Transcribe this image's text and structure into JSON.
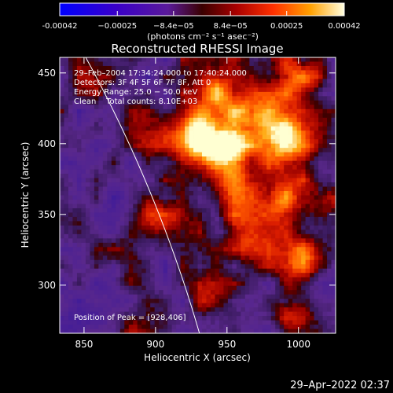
{
  "chart_data": {
    "type": "heatmap",
    "title": "Reconstructed RHESSI Image",
    "xlabel": "Heliocentric X (arcsec)",
    "ylabel": "Heliocentric Y (arcsec)",
    "xlim": [
      833,
      1026
    ],
    "ylim": [
      266,
      461
    ],
    "xticks": [
      850,
      900,
      950,
      1000
    ],
    "yticks": [
      300,
      350,
      400,
      450
    ],
    "colorbar": {
      "unit_label": "(photons cm⁻² s⁻¹ asec⁻²)",
      "ticks": [
        {
          "value": -0.00042,
          "label": "-0.00042"
        },
        {
          "value": -0.00025,
          "label": "−0.00025"
        },
        {
          "value": -8.4e-05,
          "label": "−8.4e−05"
        },
        {
          "value": 8.4e-05,
          "label": "8.4e−05"
        },
        {
          "value": 0.00025,
          "label": "0.00025"
        },
        {
          "value": 0.00042,
          "label": "0.00042"
        }
      ],
      "range": [
        -0.00042,
        0.00042
      ]
    },
    "annotations": {
      "time": "29–Feb–2004 17:34:24.000 to 17:40:24.000",
      "detectors": "Detectors: 3F 4F 5F 6F 7F 8F, Att 0",
      "energy": "Energy Range: 25.0 − 50.0 keV",
      "clean": "Clean    Total counts: 8.10E+03",
      "peak": "Position of Peak = [928,406]"
    },
    "peak": [
      928,
      406
    ],
    "hotspots": [
      {
        "x": 928,
        "y": 406,
        "amp": 1.0
      },
      {
        "x": 948,
        "y": 397,
        "amp": 0.7
      },
      {
        "x": 990,
        "y": 403,
        "amp": 0.65
      },
      {
        "x": 943,
        "y": 440,
        "amp": 0.55
      },
      {
        "x": 1000,
        "y": 447,
        "amp": 0.55
      },
      {
        "x": 967,
        "y": 420,
        "amp": 0.5
      },
      {
        "x": 955,
        "y": 372,
        "amp": 0.5
      },
      {
        "x": 985,
        "y": 357,
        "amp": 0.45
      },
      {
        "x": 1002,
        "y": 318,
        "amp": 0.5
      },
      {
        "x": 905,
        "y": 345,
        "amp": 0.35
      },
      {
        "x": 878,
        "y": 320,
        "amp": 0.3
      },
      {
        "x": 893,
        "y": 410,
        "amp": 0.3
      },
      {
        "x": 858,
        "y": 450,
        "amp": 0.3
      },
      {
        "x": 940,
        "y": 290,
        "amp": 0.35
      },
      {
        "x": 995,
        "y": 285,
        "amp": 0.35
      },
      {
        "x": 1015,
        "y": 360,
        "amp": 0.35
      },
      {
        "x": 885,
        "y": 270,
        "amp": 0.25
      },
      {
        "x": 965,
        "y": 335,
        "amp": 0.4
      }
    ],
    "limb_arc": {
      "center": [
        0,
        0
      ],
      "radius": 968
    }
  },
  "footer": {
    "date": "29–Apr–2022 02:37"
  }
}
